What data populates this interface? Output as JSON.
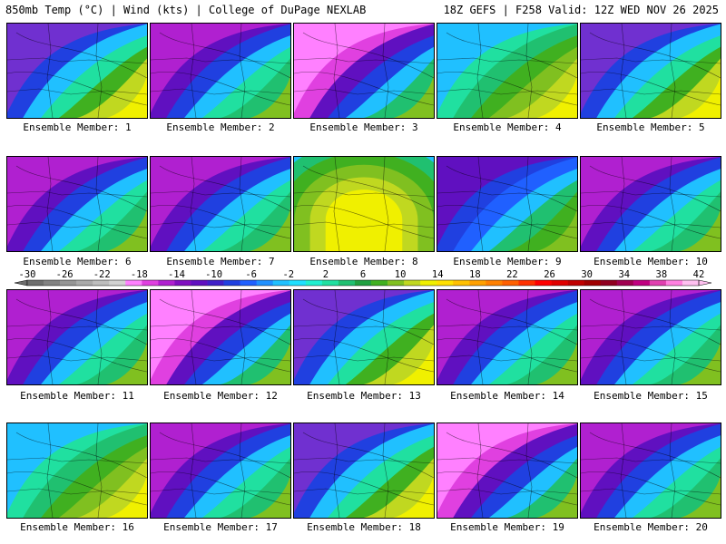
{
  "header": {
    "left": "850mb Temp (°C) | Wind (kts) | College of DuPage NEXLAB",
    "right": "18Z GEFS | F258 Valid: 12Z WED NOV 26 2025"
  },
  "caption_prefix": "Ensemble Member: ",
  "members": [
    {
      "label": "Ensemble Member: 1",
      "icon": "temperature-map-warm-southeast"
    },
    {
      "label": "Ensemble Member: 2",
      "icon": "temperature-map-cold"
    },
    {
      "label": "Ensemble Member: 3",
      "icon": "temperature-map-cold-low-north"
    },
    {
      "label": "Ensemble Member: 4",
      "icon": "temperature-map-mild"
    },
    {
      "label": "Ensemble Member: 5",
      "icon": "temperature-map-warm-southeast"
    },
    {
      "label": "Ensemble Member: 6",
      "icon": "temperature-map-cold"
    },
    {
      "label": "Ensemble Member: 7",
      "icon": "temperature-map-cold"
    },
    {
      "label": "Ensemble Member: 8",
      "icon": "temperature-map-warm-center"
    },
    {
      "label": "Ensemble Member: 9",
      "icon": "temperature-map-cold-west"
    },
    {
      "label": "Ensemble Member: 10",
      "icon": "temperature-map-cold"
    },
    {
      "label": "Ensemble Member: 11",
      "icon": "temperature-map-cold"
    },
    {
      "label": "Ensemble Member: 12",
      "icon": "temperature-map-cold-low-north"
    },
    {
      "label": "Ensemble Member: 13",
      "icon": "temperature-map-warm-southeast"
    },
    {
      "label": "Ensemble Member: 14",
      "icon": "temperature-map-cold"
    },
    {
      "label": "Ensemble Member: 15",
      "icon": "temperature-map-cold"
    },
    {
      "label": "Ensemble Member: 16",
      "icon": "temperature-map-mild"
    },
    {
      "label": "Ensemble Member: 17",
      "icon": "temperature-map-cold"
    },
    {
      "label": "Ensemble Member: 18",
      "icon": "temperature-map-warm-southeast"
    },
    {
      "label": "Ensemble Member: 19",
      "icon": "temperature-map-cold-low-north"
    },
    {
      "label": "Ensemble Member: 20",
      "icon": "temperature-map-cold"
    }
  ],
  "colorbar": {
    "ticks": [
      "-30",
      "-26",
      "-22",
      "-18",
      "-14",
      "-10",
      "-6",
      "-2",
      "2",
      "6",
      "10",
      "14",
      "18",
      "22",
      "26",
      "30",
      "34",
      "38",
      "42"
    ],
    "range": [
      -30,
      42
    ],
    "step": 2,
    "colors": [
      "#6e6e6e",
      "#828282",
      "#969696",
      "#aaaaaa",
      "#bebebe",
      "#d2d2d2",
      "#ff80ff",
      "#e040e0",
      "#b020d0",
      "#8010c0",
      "#6010c0",
      "#4020c8",
      "#2040e0",
      "#2060ff",
      "#2090ff",
      "#20c0ff",
      "#20e0ff",
      "#20f0d0",
      "#20e0a0",
      "#20c070",
      "#20a040",
      "#40b020",
      "#80c020",
      "#c0d820",
      "#f0f000",
      "#ffe000",
      "#ffc000",
      "#ffa000",
      "#ff8000",
      "#ff6000",
      "#ff3000",
      "#ff0000",
      "#e00000",
      "#c00000",
      "#a00000",
      "#900020",
      "#a00050",
      "#c00080",
      "#e040b0",
      "#ff80e0",
      "#ffc0f0"
    ]
  }
}
